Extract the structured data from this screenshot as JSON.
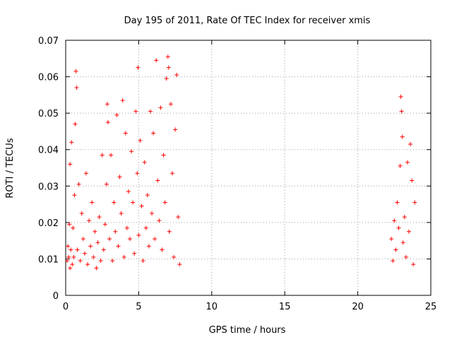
{
  "chart_data": {
    "type": "scatter",
    "title": "Day 195 of 2011, Rate Of TEC Index for receiver xmis",
    "xlabel": "GPS time / hours",
    "ylabel": "ROTI / TECUs",
    "xlim": [
      0,
      25
    ],
    "ylim": [
      0,
      0.07
    ],
    "x_ticks": [
      "0",
      "5",
      "10",
      "15",
      "20",
      "25"
    ],
    "y_ticks": [
      "0",
      "0.01",
      "0.02",
      "0.03",
      "0.04",
      "0.05",
      "0.06",
      "0.07"
    ],
    "grid": true,
    "marker": "+",
    "color": "#ff0000",
    "series": [
      {
        "points": [
          [
            0.1,
            0.0095
          ],
          [
            0.15,
            0.0135
          ],
          [
            0.2,
            0.0105
          ],
          [
            0.25,
            0.0195
          ],
          [
            0.3,
            0.0075
          ],
          [
            0.3,
            0.036
          ],
          [
            0.35,
            0.0125
          ],
          [
            0.4,
            0.042
          ],
          [
            0.45,
            0.0085
          ],
          [
            0.5,
            0.0185
          ],
          [
            0.55,
            0.0105
          ],
          [
            0.6,
            0.0275
          ],
          [
            0.65,
            0.047
          ],
          [
            0.7,
            0.0615
          ],
          [
            0.75,
            0.057
          ],
          [
            0.8,
            0.0125
          ],
          [
            0.9,
            0.0305
          ],
          [
            1.0,
            0.0095
          ],
          [
            1.1,
            0.0225
          ],
          [
            1.2,
            0.0155
          ],
          [
            1.3,
            0.0115
          ],
          [
            1.4,
            0.0335
          ],
          [
            1.5,
            0.0085
          ],
          [
            1.6,
            0.0205
          ],
          [
            1.7,
            0.0135
          ],
          [
            1.8,
            0.0255
          ],
          [
            1.9,
            0.0105
          ],
          [
            2.0,
            0.0175
          ],
          [
            2.1,
            0.0075
          ],
          [
            2.2,
            0.0145
          ],
          [
            2.3,
            0.0215
          ],
          [
            2.4,
            0.0095
          ],
          [
            2.5,
            0.0385
          ],
          [
            2.6,
            0.0125
          ],
          [
            2.7,
            0.0195
          ],
          [
            2.8,
            0.0305
          ],
          [
            2.85,
            0.0525
          ],
          [
            2.9,
            0.0475
          ],
          [
            3.0,
            0.0155
          ],
          [
            3.1,
            0.0385
          ],
          [
            3.2,
            0.0095
          ],
          [
            3.3,
            0.0255
          ],
          [
            3.4,
            0.0175
          ],
          [
            3.5,
            0.0495
          ],
          [
            3.6,
            0.0135
          ],
          [
            3.7,
            0.0325
          ],
          [
            3.8,
            0.0225
          ],
          [
            3.9,
            0.0535
          ],
          [
            4.0,
            0.0105
          ],
          [
            4.1,
            0.0445
          ],
          [
            4.2,
            0.0185
          ],
          [
            4.3,
            0.0285
          ],
          [
            4.4,
            0.0155
          ],
          [
            4.5,
            0.0395
          ],
          [
            4.6,
            0.0255
          ],
          [
            4.7,
            0.0115
          ],
          [
            4.8,
            0.0505
          ],
          [
            4.9,
            0.0335
          ],
          [
            4.95,
            0.0625
          ],
          [
            5.0,
            0.0165
          ],
          [
            5.1,
            0.0425
          ],
          [
            5.2,
            0.0245
          ],
          [
            5.3,
            0.0095
          ],
          [
            5.4,
            0.0365
          ],
          [
            5.5,
            0.0185
          ],
          [
            5.6,
            0.0275
          ],
          [
            5.7,
            0.0135
          ],
          [
            5.8,
            0.0505
          ],
          [
            5.9,
            0.0225
          ],
          [
            6.0,
            0.0445
          ],
          [
            6.1,
            0.0155
          ],
          [
            6.2,
            0.0645
          ],
          [
            6.3,
            0.0315
          ],
          [
            6.4,
            0.0205
          ],
          [
            6.5,
            0.0515
          ],
          [
            6.6,
            0.0125
          ],
          [
            6.7,
            0.0385
          ],
          [
            6.8,
            0.0255
          ],
          [
            6.9,
            0.0595
          ],
          [
            7.0,
            0.0655
          ],
          [
            7.05,
            0.0625
          ],
          [
            7.1,
            0.0175
          ],
          [
            7.2,
            0.0525
          ],
          [
            7.3,
            0.0335
          ],
          [
            7.4,
            0.0105
          ],
          [
            7.5,
            0.0455
          ],
          [
            7.6,
            0.0605
          ],
          [
            7.7,
            0.0215
          ],
          [
            7.8,
            0.0085
          ],
          [
            22.3,
            0.0155
          ],
          [
            22.4,
            0.0095
          ],
          [
            22.5,
            0.0205
          ],
          [
            22.6,
            0.0125
          ],
          [
            22.7,
            0.0255
          ],
          [
            22.8,
            0.0185
          ],
          [
            22.9,
            0.0355
          ],
          [
            22.95,
            0.0545
          ],
          [
            23.0,
            0.0505
          ],
          [
            23.05,
            0.0435
          ],
          [
            23.1,
            0.0145
          ],
          [
            23.2,
            0.0215
          ],
          [
            23.3,
            0.0105
          ],
          [
            23.4,
            0.0365
          ],
          [
            23.5,
            0.0175
          ],
          [
            23.6,
            0.0415
          ],
          [
            23.7,
            0.0315
          ],
          [
            23.8,
            0.0085
          ],
          [
            23.9,
            0.0255
          ]
        ]
      }
    ]
  }
}
